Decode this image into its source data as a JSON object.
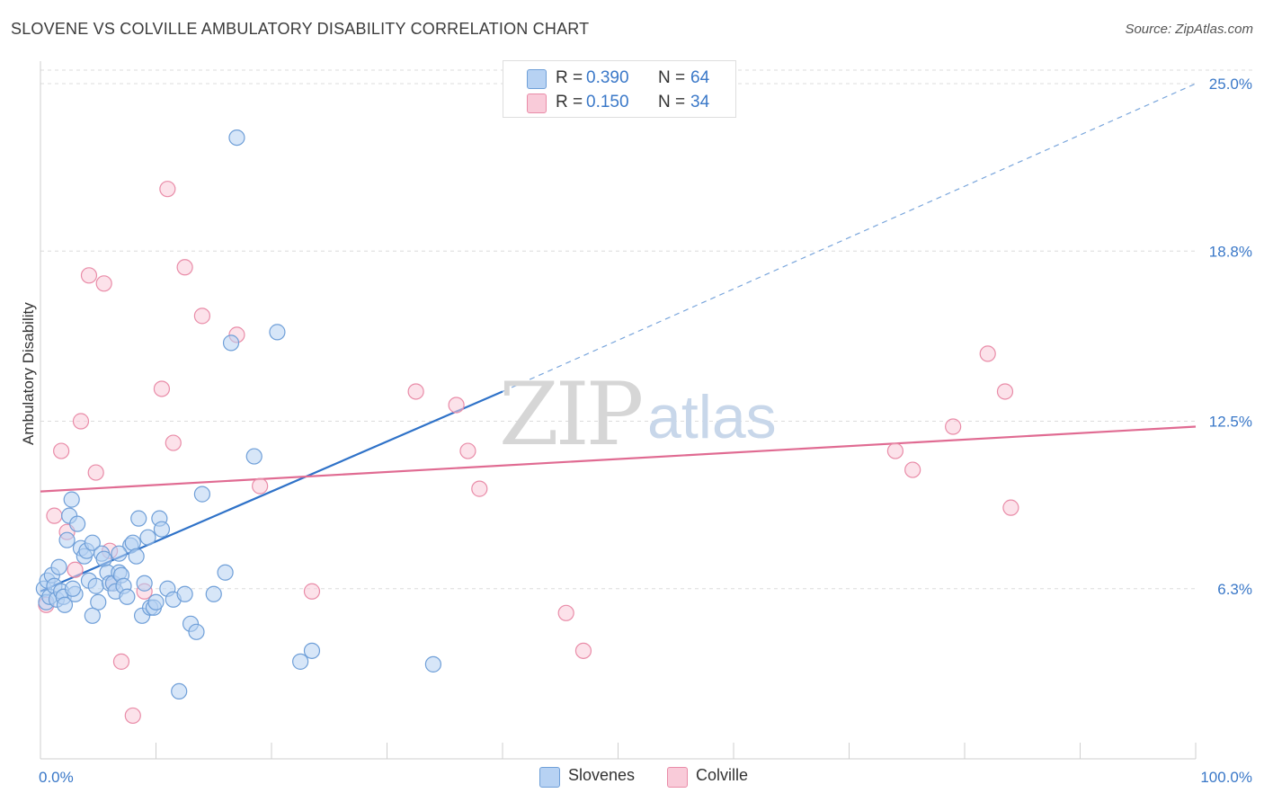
{
  "title": "SLOVENE VS COLVILLE AMBULATORY DISABILITY CORRELATION CHART",
  "source": "Source: ZipAtlas.com",
  "watermark": {
    "zip": "ZIP",
    "atlas": "atlas"
  },
  "legend": {
    "series": [
      {
        "r_label": "R =",
        "r_value": "0.390",
        "n_label": "N =",
        "n_value": "64",
        "color": "#a9c8f0",
        "border": "#6f9fd8"
      },
      {
        "r_label": "R =",
        "r_value": "0.150",
        "n_label": "N =",
        "n_value": "34",
        "color": "#f8c3d3",
        "border": "#e98ca8"
      }
    ]
  },
  "bottom_legend": [
    {
      "label": "Slovenes",
      "color": "#b7d2f3",
      "border": "#6f9fd8"
    },
    {
      "label": "Colville",
      "color": "#f9cbd9",
      "border": "#e98ca8"
    }
  ],
  "chart_data": {
    "type": "scatter",
    "title": "SLOVENE VS COLVILLE AMBULATORY DISABILITY CORRELATION CHART",
    "xlabel": "",
    "ylabel": "Ambulatory Disability",
    "xlim": [
      0,
      100
    ],
    "ylim": [
      0,
      25.5
    ],
    "x_tick_labels": [
      "0.0%",
      "100.0%"
    ],
    "y_ticks": [
      6.3,
      12.5,
      18.8,
      25.0
    ],
    "y_tick_labels": [
      "6.3%",
      "12.5%",
      "18.8%",
      "25.0%"
    ],
    "series": [
      {
        "name": "Slovenes",
        "color": "#6f9fd8",
        "fill": "#b7d2f3",
        "trend": {
          "x": [
            0,
            40
          ],
          "y": [
            6.2,
            13.6
          ],
          "extended": {
            "x": [
              40,
              100
            ],
            "y": [
              13.6,
              25.0
            ]
          },
          "line_color": "#2f72c8"
        },
        "x": [
          0.3,
          0.5,
          0.6,
          0.8,
          1.0,
          1.2,
          1.4,
          1.6,
          1.8,
          2.0,
          2.1,
          2.3,
          2.5,
          2.7,
          3.0,
          3.2,
          3.5,
          3.8,
          4.0,
          4.2,
          4.5,
          4.8,
          5.0,
          5.3,
          5.5,
          5.8,
          6.0,
          6.3,
          6.5,
          6.8,
          7.0,
          7.2,
          7.5,
          7.8,
          8.0,
          8.3,
          8.5,
          8.8,
          9.0,
          9.3,
          9.5,
          9.8,
          10.0,
          10.3,
          10.5,
          11.0,
          11.5,
          12.0,
          12.5,
          13.0,
          13.5,
          14.0,
          15.0,
          16.0,
          16.5,
          17.0,
          18.5,
          20.5,
          22.5,
          23.5,
          34.0,
          6.8,
          4.5,
          2.8
        ],
        "y": [
          6.3,
          5.8,
          6.6,
          6.0,
          6.8,
          6.4,
          5.9,
          7.1,
          6.2,
          6.0,
          5.7,
          8.1,
          9.0,
          9.6,
          6.1,
          8.7,
          7.8,
          7.5,
          7.7,
          6.6,
          8.0,
          6.4,
          5.8,
          7.6,
          7.4,
          6.9,
          6.5,
          6.5,
          6.2,
          6.9,
          6.8,
          6.4,
          6.0,
          7.9,
          8.0,
          7.5,
          8.9,
          5.3,
          6.5,
          8.2,
          5.6,
          5.6,
          5.8,
          8.9,
          8.5,
          6.3,
          5.9,
          2.5,
          6.1,
          5.0,
          4.7,
          9.8,
          6.1,
          6.9,
          15.4,
          23.0,
          11.2,
          15.8,
          3.6,
          4.0,
          3.5,
          7.6,
          5.3,
          6.3
        ]
      },
      {
        "name": "Colville",
        "color": "#e98ca8",
        "fill": "#f9cbd9",
        "trend": {
          "x": [
            0,
            100
          ],
          "y": [
            9.9,
            12.3
          ],
          "line_color": "#e06b92"
        },
        "x": [
          0.5,
          1.2,
          1.8,
          2.3,
          3.0,
          3.5,
          4.2,
          4.8,
          5.5,
          6.0,
          6.3,
          7.0,
          8.0,
          9.0,
          10.5,
          11.0,
          11.5,
          12.5,
          14.0,
          17.0,
          19.0,
          23.5,
          32.5,
          36.0,
          37.0,
          38.0,
          45.5,
          47.0,
          74.0,
          75.5,
          79.0,
          82.0,
          83.5,
          84.0
        ],
        "y": [
          5.7,
          9.0,
          11.4,
          8.4,
          7.0,
          12.5,
          17.9,
          10.6,
          17.6,
          7.7,
          6.5,
          3.6,
          1.6,
          6.2,
          13.7,
          21.1,
          11.7,
          18.2,
          16.4,
          15.7,
          10.1,
          6.2,
          13.6,
          13.1,
          11.4,
          10.0,
          5.4,
          4.0,
          11.4,
          10.7,
          12.3,
          15.0,
          13.6,
          9.3
        ]
      }
    ]
  }
}
